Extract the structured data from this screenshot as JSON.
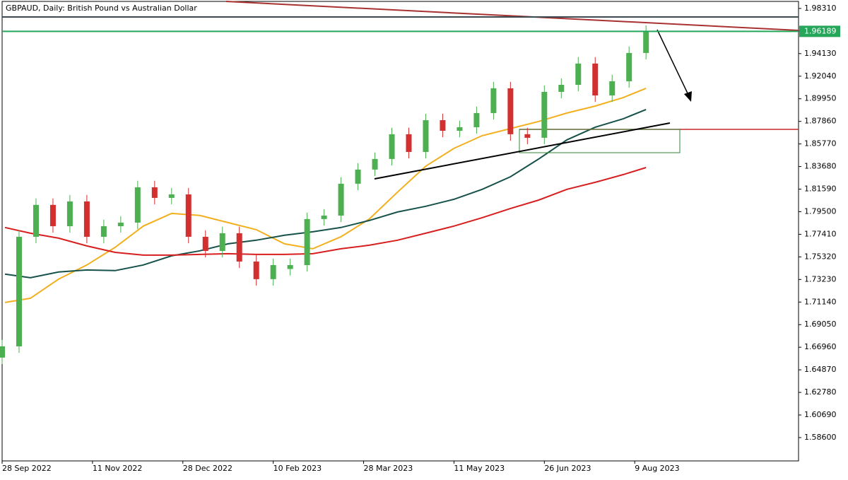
{
  "chart_data": {
    "type": "candlestick",
    "title": "GBPAUD, Daily:  British Pound vs Australian Dollar",
    "x": [
      0,
      6,
      12,
      18,
      24,
      30,
      36,
      42,
      48,
      54,
      60,
      66,
      72,
      78,
      84,
      90,
      96,
      102,
      108,
      114,
      120,
      126,
      132,
      138,
      144,
      150,
      156,
      162,
      168,
      174,
      180,
      186,
      192,
      198,
      204,
      210,
      216,
      222,
      228
    ],
    "open": [
      1.66,
      1.6704,
      1.7718,
      1.8013,
      1.7816,
      1.8045,
      1.7718,
      1.7816,
      1.7849,
      1.8176,
      1.8078,
      1.811,
      1.7718,
      1.7587,
      1.7751,
      1.7489,
      1.7326,
      1.742,
      1.7456,
      1.7882,
      1.7914,
      1.8209,
      1.834,
      1.8438,
      1.8667,
      1.8503,
      1.8797,
      1.8699,
      1.8732,
      1.8863,
      1.9092,
      1.8667,
      1.8634,
      1.9059,
      1.9124,
      1.9321,
      1.9026,
      1.9157,
      1.9419
    ],
    "high": [
      1.6764,
      1.7778,
      1.8073,
      1.8073,
      1.8105,
      1.8105,
      1.7876,
      1.7909,
      1.8236,
      1.8236,
      1.817,
      1.817,
      1.7778,
      1.7811,
      1.7811,
      1.7549,
      1.7516,
      1.7516,
      1.7942,
      1.7974,
      1.8269,
      1.84,
      1.8498,
      1.8727,
      1.8727,
      1.8857,
      1.8857,
      1.8792,
      1.8923,
      1.9152,
      1.9152,
      1.8727,
      1.9119,
      1.9184,
      1.9381,
      1.9381,
      1.9217,
      1.9479,
      1.9675
    ],
    "low": [
      1.654,
      1.6644,
      1.7658,
      1.7756,
      1.7756,
      1.7658,
      1.7658,
      1.7756,
      1.7789,
      1.8018,
      1.8018,
      1.7658,
      1.7527,
      1.7527,
      1.7429,
      1.7266,
      1.7266,
      1.736,
      1.7396,
      1.7822,
      1.7854,
      1.8149,
      1.828,
      1.8378,
      1.8443,
      1.8443,
      1.8639,
      1.8639,
      1.8672,
      1.8803,
      1.8607,
      1.8574,
      1.8574,
      1.8999,
      1.9064,
      1.8966,
      1.8966,
      1.9097,
      1.9359
    ],
    "close": [
      1.6704,
      1.7718,
      1.8013,
      1.7816,
      1.8045,
      1.7718,
      1.7816,
      1.7849,
      1.8176,
      1.8078,
      1.811,
      1.7718,
      1.7587,
      1.7751,
      1.7489,
      1.7326,
      1.7456,
      1.7456,
      1.7882,
      1.7914,
      1.8209,
      1.834,
      1.8438,
      1.8667,
      1.8503,
      1.8797,
      1.8699,
      1.8732,
      1.8863,
      1.9092,
      1.8667,
      1.8634,
      1.9059,
      1.9124,
      1.9321,
      1.9026,
      1.9157,
      1.9419,
      1.9615
    ],
    "up_color": "#4caf50",
    "down_color": "#d32f2f",
    "lines": [
      {
        "color": "#f2b01e",
        "x": [
          1,
          10,
          20,
          30,
          40,
          50,
          60,
          70,
          80,
          90,
          100,
          110,
          120,
          130,
          140,
          150,
          160,
          170,
          180,
          190,
          200,
          210,
          220,
          228
        ],
        "values": [
          1.711,
          1.7149,
          1.7326,
          1.7457,
          1.762,
          1.7817,
          1.7934,
          1.7915,
          1.7849,
          1.7784,
          1.7653,
          1.7607,
          1.7719,
          1.7882,
          1.8131,
          1.8372,
          1.8536,
          1.8654,
          1.8719,
          1.8785,
          1.8863,
          1.8928,
          1.9007,
          1.9092
        ]
      },
      {
        "color": "#17524a",
        "x": [
          1,
          10,
          20,
          30,
          40,
          50,
          60,
          70,
          80,
          90,
          100,
          110,
          120,
          130,
          140,
          150,
          160,
          170,
          180,
          190,
          200,
          210,
          220,
          228
        ],
        "values": [
          1.7372,
          1.7339,
          1.7392,
          1.7411,
          1.7405,
          1.7457,
          1.7542,
          1.7588,
          1.7653,
          1.7686,
          1.7732,
          1.7764,
          1.7804,
          1.7869,
          1.7947,
          1.8,
          1.8065,
          1.8157,
          1.8274,
          1.8438,
          1.8615,
          1.8732,
          1.8811,
          1.8896
        ]
      },
      {
        "color": "#d81e1e",
        "x": [
          1,
          10,
          20,
          30,
          40,
          50,
          60,
          70,
          80,
          90,
          100,
          110,
          120,
          130,
          140,
          150,
          160,
          170,
          180,
          190,
          200,
          210,
          220,
          228
        ],
        "values": [
          1.7804,
          1.7751,
          1.7705,
          1.7633,
          1.7574,
          1.7548,
          1.7548,
          1.7555,
          1.7561,
          1.7555,
          1.7555,
          1.7561,
          1.7607,
          1.764,
          1.7686,
          1.7751,
          1.7817,
          1.7895,
          1.798,
          1.8058,
          1.8157,
          1.8222,
          1.8294,
          1.8359
        ]
      }
    ],
    "last_price": 1.96189,
    "last_price_color": "#26a65b",
    "xlim": [
      0,
      282
    ],
    "ylim": [
      1.5644,
      1.9896
    ],
    "xticks": [
      {
        "value": 0,
        "label": "28 Sep 2022"
      },
      {
        "value": 32,
        "label": "11 Nov 2022"
      },
      {
        "value": 64,
        "label": "28 Dec 2022"
      },
      {
        "value": 96,
        "label": "10 Feb 2023"
      },
      {
        "value": 128,
        "label": "28 Mar 2023"
      },
      {
        "value": 160,
        "label": "11 May 2023"
      },
      {
        "value": 192,
        "label": "26 Jun 2023"
      },
      {
        "value": 224,
        "label": "9 Aug 2023"
      }
    ],
    "yticks": [
      {
        "value": 1.9831,
        "label": "1.98310"
      },
      {
        "value": 1.9622,
        "label": "1.96220"
      },
      {
        "value": 1.9413,
        "label": "1.94130"
      },
      {
        "value": 1.9204,
        "label": "1.92040"
      },
      {
        "value": 1.8995,
        "label": "1.89950"
      },
      {
        "value": 1.8786,
        "label": "1.87860"
      },
      {
        "value": 1.8577,
        "label": "1.85770"
      },
      {
        "value": 1.8368,
        "label": "1.83680"
      },
      {
        "value": 1.8159,
        "label": "1.81590"
      },
      {
        "value": 1.795,
        "label": "1.79500"
      },
      {
        "value": 1.7741,
        "label": "1.77410"
      },
      {
        "value": 1.7532,
        "label": "1.75320"
      },
      {
        "value": 1.7323,
        "label": "1.73230"
      },
      {
        "value": 1.7114,
        "label": "1.71140"
      },
      {
        "value": 1.6905,
        "label": "1.69050"
      },
      {
        "value": 1.6696,
        "label": "1.66960"
      },
      {
        "value": 1.6487,
        "label": "1.64870"
      },
      {
        "value": 1.6278,
        "label": "1.62780"
      },
      {
        "value": 1.6069,
        "label": "1.60690"
      },
      {
        "value": 1.586,
        "label": "1.58600"
      }
    ]
  }
}
